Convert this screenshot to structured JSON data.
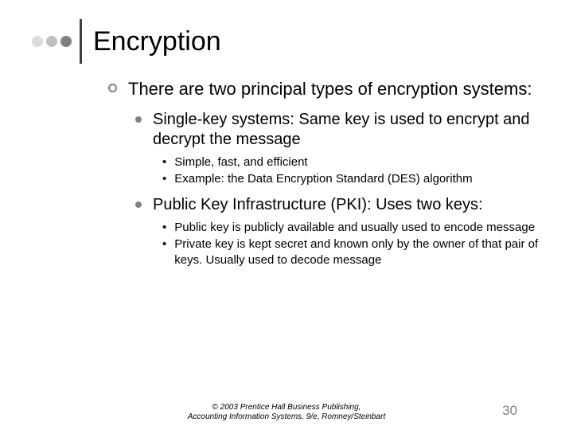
{
  "title": "Encryption",
  "main": {
    "text": "There are two principal types of encryption systems:"
  },
  "item1": {
    "heading": "Single-key systems: Same key is used to encrypt and decrypt the message",
    "sub1": "Simple, fast, and efficient",
    "sub2": "Example: the Data Encryption Standard (DES) algorithm"
  },
  "item2": {
    "heading": "Public Key Infrastructure (PKI): Uses two keys:",
    "sub1": "Public key is publicly available and usually used to encode message",
    "sub2": "Private key is kept secret and known only by the owner of that pair of keys. Usually used to decode message"
  },
  "footer": {
    "line1": "© 2003 Prentice Hall Business Publishing,",
    "line2": "Accounting Information Systems, 9/e, Romney/Steinbart"
  },
  "page_number": "30",
  "colors": {
    "dot1": "#dcdcdc",
    "dot2": "#c0c0c0",
    "dot3": "#808080",
    "bar": "#404040",
    "bullet_gray": "#808080",
    "text": "#000000",
    "bg": "#ffffff"
  }
}
